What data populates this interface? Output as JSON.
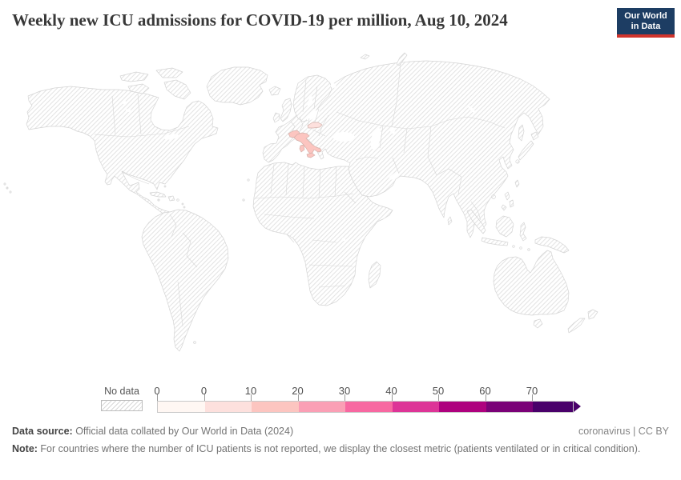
{
  "header": {
    "title": "Weekly new ICU admissions for COVID-19 per million, Aug 10, 2024",
    "logo": {
      "line1": "Our World",
      "line2": "in Data",
      "bg_color": "#1d3d63",
      "accent_color": "#d0342c"
    }
  },
  "legend": {
    "no_data_label": "No data",
    "bins": [
      {
        "label": "0",
        "color": "#fff7f3"
      },
      {
        "label": "0",
        "color": "#fde0dd"
      },
      {
        "label": "10",
        "color": "#fcc5c0"
      },
      {
        "label": "20",
        "color": "#fa9fb5"
      },
      {
        "label": "30",
        "color": "#f768a1"
      },
      {
        "label": "40",
        "color": "#dd3497"
      },
      {
        "label": "50",
        "color": "#ae017e"
      },
      {
        "label": "60",
        "color": "#7a0177"
      },
      {
        "label": "70",
        "color": "#49006a"
      }
    ]
  },
  "map": {
    "no_data_fill": "hatched",
    "highlights": [
      {
        "country": "Italy",
        "color": "#fcc5c0"
      },
      {
        "country": "Switzerland",
        "color": "#fcc5c0"
      },
      {
        "country": "Slovakia",
        "color": "#fde0dd"
      }
    ]
  },
  "footer": {
    "datasource_label": "Data source:",
    "datasource_text": " Official data collated by Our World in Data (2024)",
    "license": "coronavirus | CC BY",
    "note_label": "Note:",
    "note_text": " For countries where the number of ICU patients is not reported, we display the closest metric (patients ventilated or in critical condition)."
  },
  "chart_data": {
    "type": "choropleth_map",
    "title": "Weekly new ICU admissions for COVID-19 per million, Aug 10, 2024",
    "date": "Aug 10, 2024",
    "unit": "per million",
    "legend_tick_labels": [
      "0",
      "0",
      "10",
      "20",
      "30",
      "40",
      "50",
      "60",
      "70"
    ],
    "legend_colors": [
      "#fff7f3",
      "#fde0dd",
      "#fcc5c0",
      "#fa9fb5",
      "#f768a1",
      "#dd3497",
      "#ae017e",
      "#7a0177",
      "#49006a"
    ],
    "legend_open_ended": true,
    "no_data": {
      "label": "No data",
      "pattern": "diagonal-hatch"
    },
    "countries_with_data": [
      {
        "name": "Italy",
        "fill": "#fcc5c0"
      },
      {
        "name": "Switzerland",
        "fill": "#fcc5c0"
      },
      {
        "name": "Slovakia",
        "fill": "#fde0dd"
      }
    ],
    "all_other_countries": "no data"
  }
}
